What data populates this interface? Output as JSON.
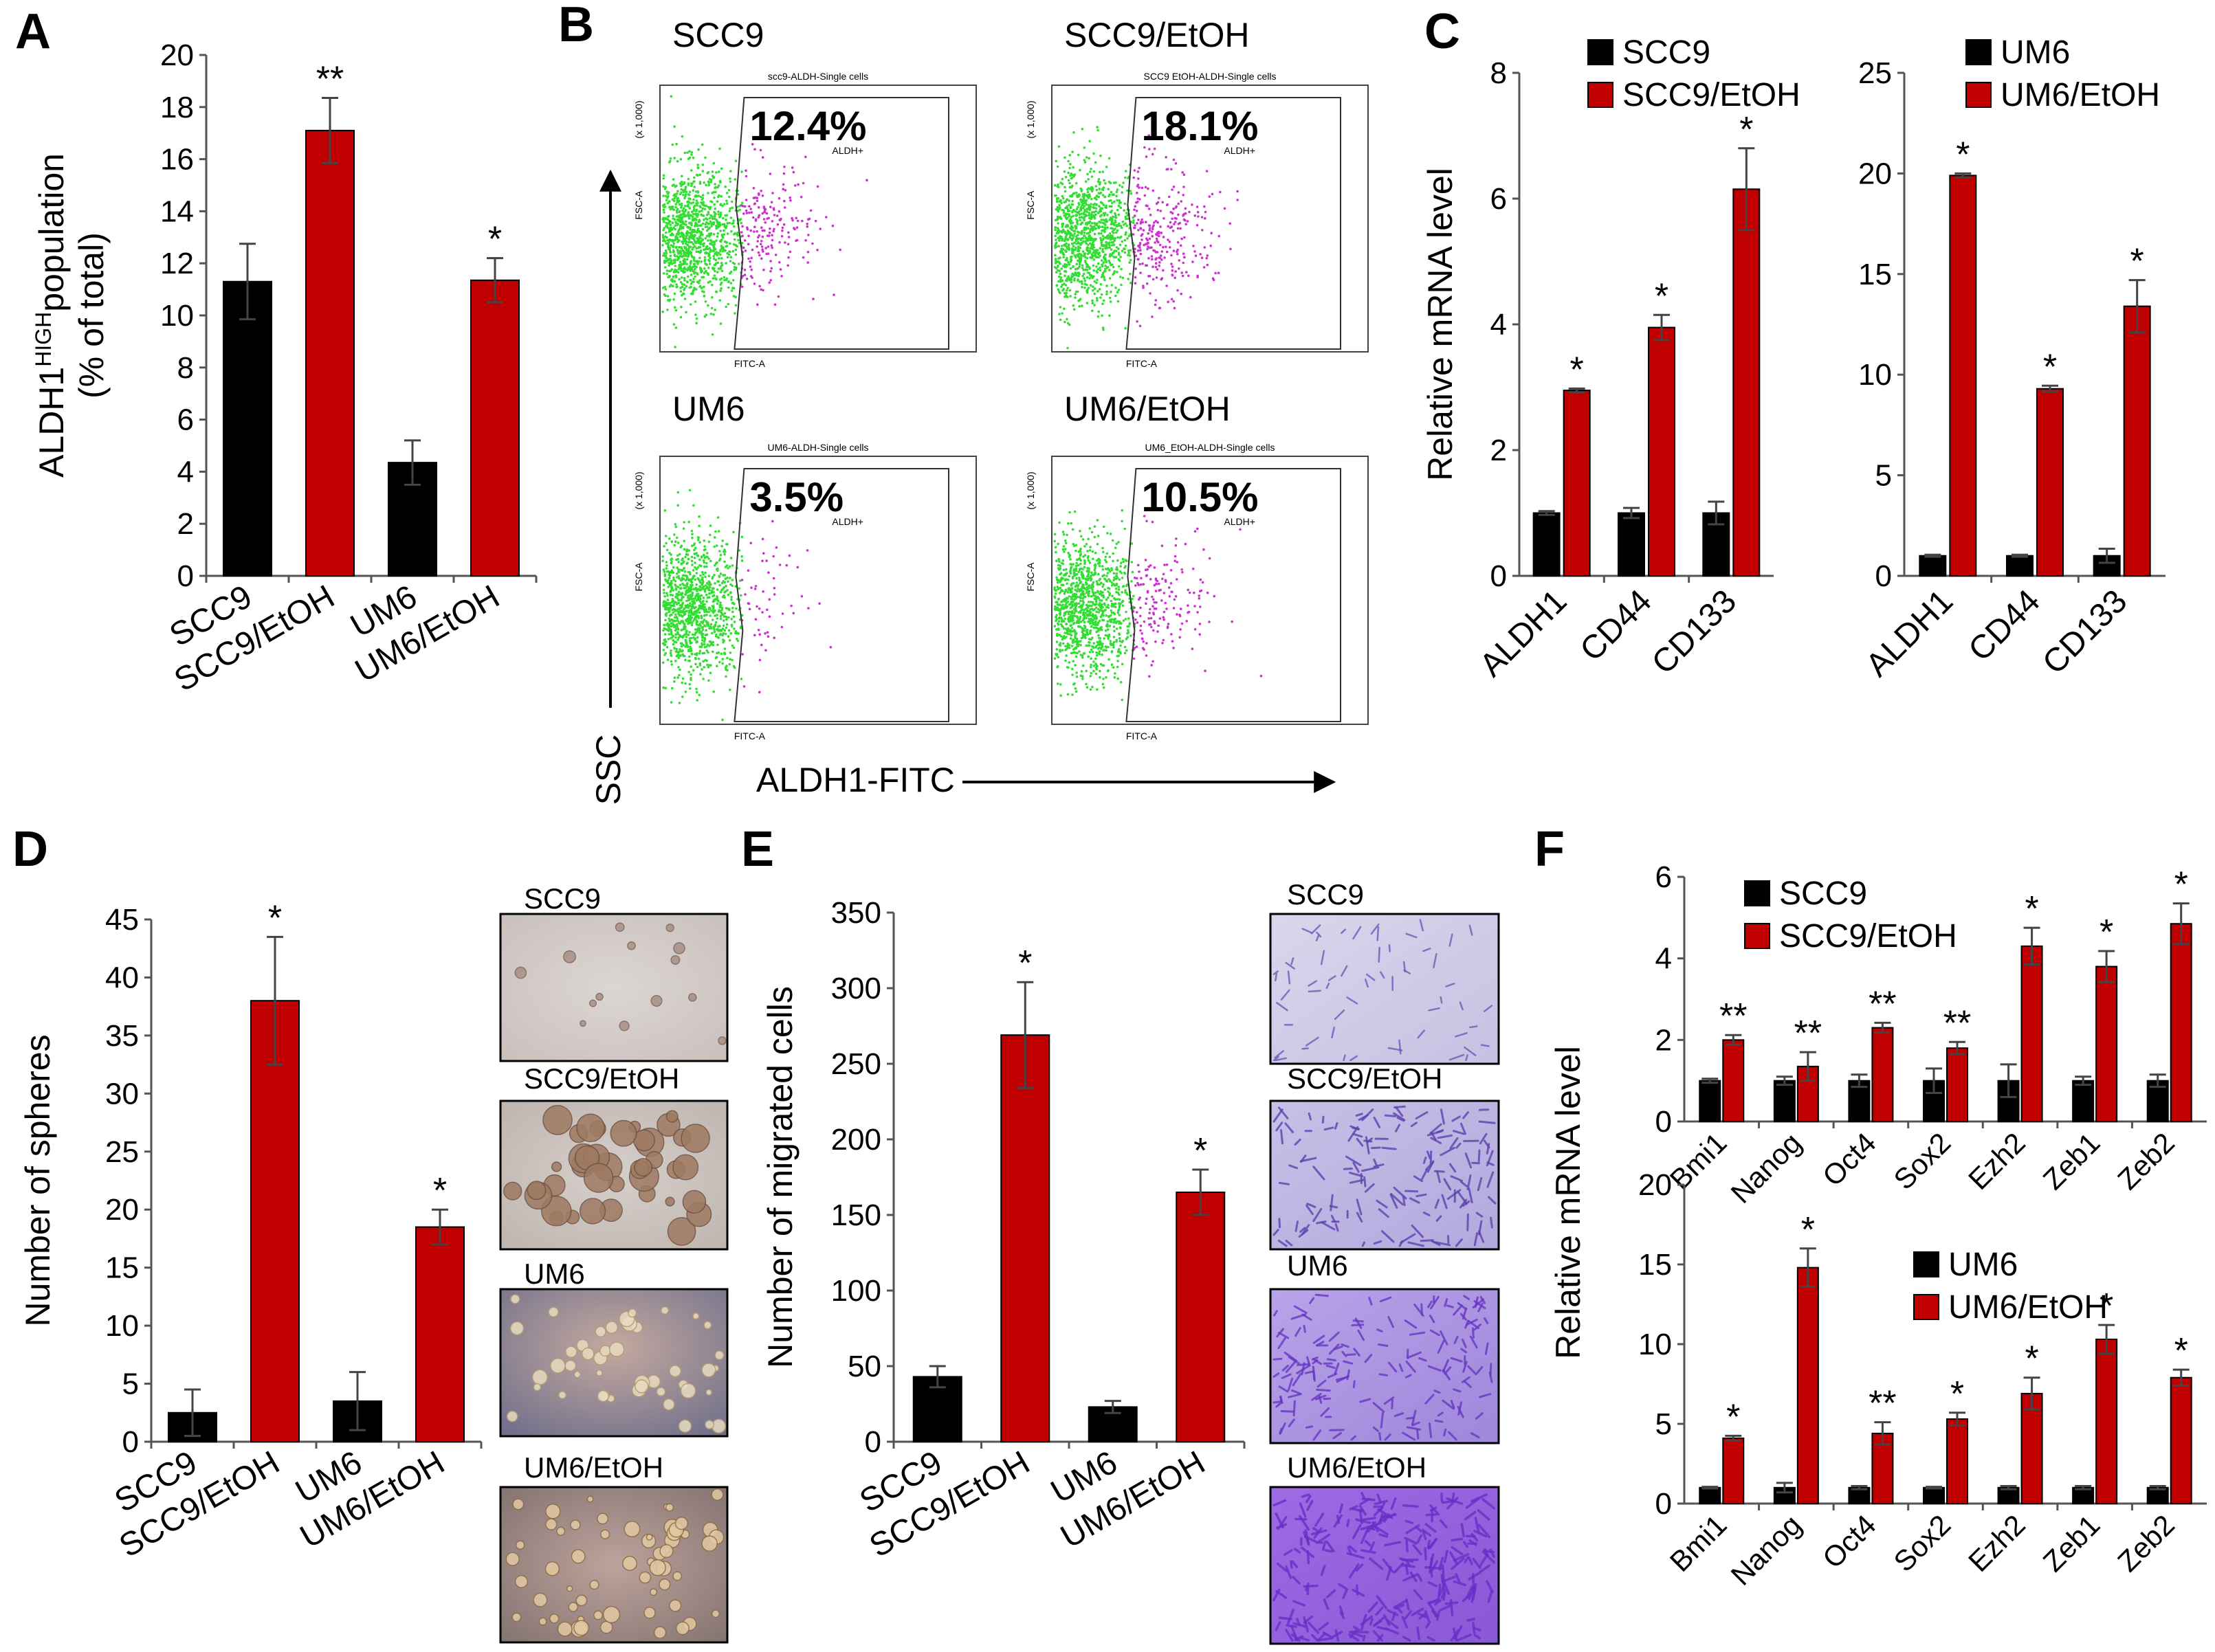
{
  "colors": {
    "control": "#000000",
    "etoh": "#c00000",
    "flow_low": "#33dd33",
    "flow_high": "#cc33cc"
  },
  "panel_letters": {
    "A": "A",
    "B": "B",
    "C": "C",
    "D": "D",
    "E": "E",
    "F": "F"
  },
  "flow": {
    "x_axis_label": "ALDH1-FITC",
    "y_axis_label": "SSC",
    "gate_label": "ALDH+",
    "x_axis_short": "FITC-A",
    "y_axis_short": "FSC-A",
    "y_unit": "(x 1,000)",
    "plots": [
      {
        "label": "SCC9",
        "title": "scc9-ALDH-Single cells",
        "percent": "12.4%"
      },
      {
        "label": "SCC9/EtOH",
        "title": "SCC9 EtOH-ALDH-Single cells",
        "percent": "18.1%"
      },
      {
        "label": "UM6",
        "title": "UM6-ALDH-Single cells",
        "percent": "3.5%"
      },
      {
        "label": "UM6/EtOH",
        "title": "UM6_EtOH-ALDH-Single cells",
        "percent": "10.5%"
      }
    ]
  },
  "micrographs": {
    "D": [
      "SCC9",
      "SCC9/EtOH",
      "UM6",
      "UM6/EtOH"
    ],
    "E": [
      "SCC9",
      "SCC9/EtOH",
      "UM6",
      "UM6/EtOH"
    ]
  },
  "chart_data": [
    {
      "id": "A",
      "type": "bar",
      "categories": [
        "SCC9",
        "SCC9/EtOH",
        "UM6",
        "UM6/EtOH"
      ],
      "values": [
        11.3,
        17.1,
        4.35,
        11.35
      ],
      "errors": [
        1.45,
        1.25,
        0.85,
        0.85
      ],
      "colors": [
        "control",
        "etoh",
        "control",
        "etoh"
      ],
      "significance": [
        "",
        "**",
        "",
        "*"
      ],
      "ylabel_line1": "ALDH1",
      "ylabel_sup": "HIGH",
      "ylabel_line1_end": "population",
      "ylabel_line2": "(% of total)",
      "ylim": [
        0,
        20
      ],
      "yticks": [
        0,
        2,
        4,
        6,
        8,
        10,
        12,
        14,
        16,
        18,
        20
      ]
    },
    {
      "id": "C1",
      "type": "bar",
      "categories": [
        "ALDH1",
        "CD44",
        "CD133"
      ],
      "series": [
        {
          "name": "SCC9",
          "values": [
            1.0,
            1.0,
            1.0
          ],
          "errors": [
            0.03,
            0.08,
            0.18
          ]
        },
        {
          "name": "SCC9/EtOH",
          "values": [
            2.95,
            3.95,
            6.15
          ],
          "errors": [
            0.03,
            0.2,
            0.65
          ]
        }
      ],
      "significance": [
        "*",
        "*",
        "*"
      ],
      "ylabel": "Relative mRNA level",
      "ylim": [
        0,
        8
      ],
      "yticks": [
        0,
        2,
        4,
        6,
        8
      ]
    },
    {
      "id": "C2",
      "type": "bar",
      "categories": [
        "ALDH1",
        "CD44",
        "CD133"
      ],
      "series": [
        {
          "name": "UM6",
          "values": [
            1.0,
            1.0,
            1.0
          ],
          "errors": [
            0.05,
            0.05,
            0.35
          ]
        },
        {
          "name": "UM6/EtOH",
          "values": [
            19.9,
            9.3,
            13.4
          ],
          "errors": [
            0.1,
            0.15,
            1.3
          ]
        }
      ],
      "significance": [
        "*",
        "*",
        "*"
      ],
      "ylim": [
        0,
        25
      ],
      "yticks": [
        0,
        5,
        10,
        15,
        20,
        25
      ]
    },
    {
      "id": "D",
      "type": "bar",
      "categories": [
        "SCC9",
        "SCC9/EtOH",
        "UM6",
        "UM6/EtOH"
      ],
      "values": [
        2.5,
        38,
        3.5,
        18.5
      ],
      "errors": [
        2.0,
        5.5,
        2.5,
        1.5
      ],
      "colors": [
        "control",
        "etoh",
        "control",
        "etoh"
      ],
      "significance": [
        "",
        "*",
        "",
        "*"
      ],
      "ylabel": "Number of spheres",
      "ylim": [
        0,
        45
      ],
      "yticks": [
        0,
        5,
        10,
        15,
        20,
        25,
        30,
        35,
        40,
        45
      ]
    },
    {
      "id": "E",
      "type": "bar",
      "categories": [
        "SCC9",
        "SCC9/EtOH",
        "UM6",
        "UM6/EtOH"
      ],
      "values": [
        43,
        269,
        23,
        165
      ],
      "errors": [
        7,
        35,
        4,
        15
      ],
      "colors": [
        "control",
        "etoh",
        "control",
        "etoh"
      ],
      "significance": [
        "",
        "*",
        "",
        "*"
      ],
      "ylabel": "Number of migrated cells",
      "ylim": [
        0,
        350
      ],
      "yticks": [
        0,
        50,
        100,
        150,
        200,
        250,
        300,
        350
      ]
    },
    {
      "id": "F1",
      "type": "bar",
      "categories": [
        "Bmi1",
        "Nanog",
        "Oct4",
        "Sox2",
        "Ezh2",
        "Zeb1",
        "Zeb2"
      ],
      "series": [
        {
          "name": "SCC9",
          "values": [
            1.0,
            1.0,
            1.0,
            1.0,
            1.0,
            1.0,
            1.0
          ],
          "errors": [
            0.05,
            0.1,
            0.15,
            0.3,
            0.4,
            0.1,
            0.15
          ]
        },
        {
          "name": "SCC9/EtOH",
          "values": [
            2.0,
            1.35,
            2.3,
            1.8,
            4.3,
            3.8,
            4.85
          ],
          "errors": [
            0.12,
            0.35,
            0.12,
            0.15,
            0.45,
            0.38,
            0.5
          ]
        }
      ],
      "significance": [
        "**",
        "**",
        "**",
        "**",
        "*",
        "*",
        "*"
      ],
      "ylim": [
        0,
        6
      ],
      "yticks": [
        0,
        2,
        4,
        6
      ]
    },
    {
      "id": "F2",
      "type": "bar",
      "categories": [
        "Bmi1",
        "Nanog",
        "Oct4",
        "Sox2",
        "Ezh2",
        "Zeb1",
        "Zeb2"
      ],
      "series": [
        {
          "name": "UM6",
          "values": [
            1.0,
            1.0,
            1.0,
            1.0,
            1.0,
            1.0,
            1.0
          ],
          "errors": [
            0.05,
            0.3,
            0.1,
            0.05,
            0.1,
            0.1,
            0.1
          ]
        },
        {
          "name": "UM6/EtOH",
          "values": [
            4.1,
            14.8,
            4.4,
            5.3,
            6.9,
            10.3,
            7.9
          ],
          "errors": [
            0.15,
            1.2,
            0.7,
            0.4,
            1.0,
            0.9,
            0.5
          ]
        }
      ],
      "significance": [
        "*",
        "*",
        "**",
        "*",
        "*",
        "*",
        "*"
      ],
      "ylim": [
        0,
        20
      ],
      "yticks": [
        0,
        5,
        10,
        15,
        20
      ]
    }
  ],
  "F_ylabel": "Relative mRNA level"
}
